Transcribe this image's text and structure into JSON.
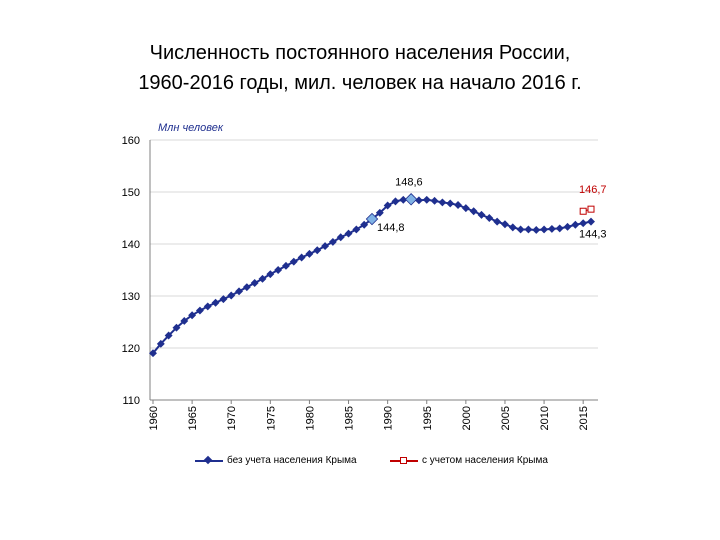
{
  "title": {
    "line1": "Численность постоянного населения России,",
    "line2": "1960-2016 годы, мил. человек на начало 2016 г."
  },
  "chart_data": {
    "type": "line",
    "ylabel": "Млн человек",
    "xlabel": "",
    "ylim": [
      110,
      160
    ],
    "yticks": [
      110,
      120,
      130,
      140,
      150,
      160
    ],
    "xlim": [
      1960,
      2016
    ],
    "xticks": [
      1960,
      1965,
      1970,
      1975,
      1980,
      1985,
      1990,
      1995,
      2000,
      2005,
      2010,
      2015
    ],
    "grid": "horizontal",
    "legend_position": "bottom",
    "colors": {
      "series1": "#1f2f8f",
      "series2": "#c00000",
      "highlight": "#7fb2e5",
      "grid": "#d9d9d9"
    },
    "series": [
      {
        "name": "без учета населения Крыма",
        "x": [
          1960,
          1961,
          1962,
          1963,
          1964,
          1965,
          1966,
          1967,
          1968,
          1969,
          1970,
          1971,
          1972,
          1973,
          1974,
          1975,
          1976,
          1977,
          1978,
          1979,
          1980,
          1981,
          1982,
          1983,
          1984,
          1985,
          1986,
          1987,
          1988,
          1989,
          1990,
          1991,
          1992,
          1993,
          1994,
          1995,
          1996,
          1997,
          1998,
          1999,
          2000,
          2001,
          2002,
          2003,
          2004,
          2005,
          2006,
          2007,
          2008,
          2009,
          2010,
          2011,
          2012,
          2013,
          2014,
          2015,
          2016
        ],
        "y": [
          119.0,
          120.8,
          122.4,
          123.9,
          125.2,
          126.3,
          127.2,
          128.0,
          128.7,
          129.4,
          130.1,
          130.9,
          131.7,
          132.5,
          133.3,
          134.2,
          135.0,
          135.8,
          136.6,
          137.4,
          138.1,
          138.8,
          139.6,
          140.4,
          141.3,
          142.0,
          142.8,
          143.7,
          144.8,
          146.0,
          147.4,
          148.2,
          148.5,
          148.6,
          148.4,
          148.5,
          148.3,
          148.0,
          147.8,
          147.5,
          146.9,
          146.3,
          145.6,
          145.0,
          144.3,
          143.8,
          143.2,
          142.8,
          142.8,
          142.7,
          142.8,
          142.9,
          143.0,
          143.3,
          143.7,
          144.0,
          144.3
        ]
      },
      {
        "name": "с учетом населения Крыма",
        "x": [
          2015,
          2016
        ],
        "y": [
          146.3,
          146.7
        ]
      }
    ],
    "annotations": [
      {
        "text": "148,6",
        "x": 1993,
        "y": 148.6,
        "color": "#000000"
      },
      {
        "text": "144,8",
        "x": 1988,
        "y": 144.8,
        "color": "#000000"
      },
      {
        "text": "146,7",
        "x": 2016,
        "y": 146.7,
        "color": "#c00000"
      },
      {
        "text": "144,3",
        "x": 2016,
        "y": 144.3,
        "color": "#000000"
      }
    ],
    "highlighted_points": [
      1988,
      1993
    ]
  }
}
